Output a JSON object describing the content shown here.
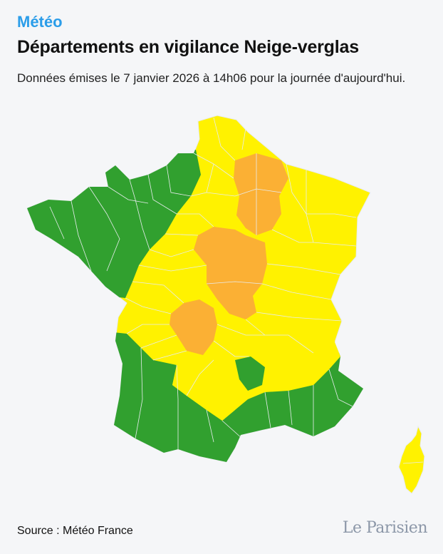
{
  "header": {
    "kicker": "Météo",
    "title": "Départements en vigilance Neige-verglas",
    "subtitle": "Données émises le 7 janvier 2026 à 14h06 pour la journée d'aujourd'hui."
  },
  "legend_colors": {
    "green": "#31a02f",
    "yellow": "#fff200",
    "orange": "#fbb034"
  },
  "footer": {
    "source": "Source : Météo France",
    "logo": "Le Parisien"
  }
}
